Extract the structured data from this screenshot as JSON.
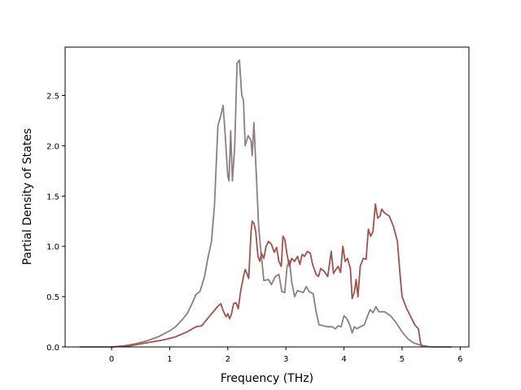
{
  "chart_data": {
    "type": "line",
    "title": "",
    "xlabel": "Frequency (THz)",
    "ylabel": "Partial Density of States",
    "xlim": [
      -0.8,
      6.15
    ],
    "ylim": [
      0,
      2.98
    ],
    "xticks": [
      0,
      1,
      2,
      3,
      4,
      5,
      6
    ],
    "yticks": [
      0.0,
      0.5,
      1.0,
      1.5,
      2.0,
      2.5
    ],
    "ytick_labels": [
      "0.0",
      "0.5",
      "1.0",
      "1.5",
      "2.0",
      "2.5"
    ],
    "grid": false,
    "legend": "none",
    "series": [
      {
        "color": "#8c7e85",
        "points": [
          [
            -0.55,
            0
          ],
          [
            0,
            0
          ],
          [
            0.2,
            0.01
          ],
          [
            0.4,
            0.03
          ],
          [
            0.6,
            0.06
          ],
          [
            0.8,
            0.1
          ],
          [
            1.0,
            0.16
          ],
          [
            1.1,
            0.2
          ],
          [
            1.2,
            0.26
          ],
          [
            1.3,
            0.33
          ],
          [
            1.4,
            0.45
          ],
          [
            1.45,
            0.52
          ],
          [
            1.52,
            0.55
          ],
          [
            1.6,
            0.7
          ],
          [
            1.65,
            0.86
          ],
          [
            1.72,
            1.05
          ],
          [
            1.77,
            1.4
          ],
          [
            1.83,
            2.2
          ],
          [
            1.88,
            2.3
          ],
          [
            1.92,
            2.4
          ],
          [
            1.95,
            2.15
          ],
          [
            2.0,
            1.7
          ],
          [
            2.02,
            1.65
          ],
          [
            2.05,
            2.15
          ],
          [
            2.08,
            1.65
          ],
          [
            2.12,
            2.0
          ],
          [
            2.16,
            2.82
          ],
          [
            2.2,
            2.85
          ],
          [
            2.24,
            2.5
          ],
          [
            2.27,
            2.45
          ],
          [
            2.3,
            2.0
          ],
          [
            2.35,
            2.1
          ],
          [
            2.4,
            2.05
          ],
          [
            2.42,
            1.9
          ],
          [
            2.45,
            2.23
          ],
          [
            2.5,
            1.6
          ],
          [
            2.53,
            1.2
          ],
          [
            2.57,
            0.95
          ],
          [
            2.62,
            0.66
          ],
          [
            2.7,
            0.67
          ],
          [
            2.75,
            0.62
          ],
          [
            2.82,
            0.7
          ],
          [
            2.88,
            0.72
          ],
          [
            2.93,
            0.55
          ],
          [
            2.98,
            0.54
          ],
          [
            3.02,
            0.8
          ],
          [
            3.06,
            0.86
          ],
          [
            3.1,
            0.65
          ],
          [
            3.15,
            0.5
          ],
          [
            3.2,
            0.56
          ],
          [
            3.25,
            0.55
          ],
          [
            3.3,
            0.54
          ],
          [
            3.35,
            0.6
          ],
          [
            3.4,
            0.55
          ],
          [
            3.47,
            0.53
          ],
          [
            3.52,
            0.35
          ],
          [
            3.57,
            0.22
          ],
          [
            3.65,
            0.21
          ],
          [
            3.72,
            0.2
          ],
          [
            3.8,
            0.2
          ],
          [
            3.85,
            0.18
          ],
          [
            3.9,
            0.21
          ],
          [
            3.95,
            0.2
          ],
          [
            4.0,
            0.31
          ],
          [
            4.05,
            0.28
          ],
          [
            4.1,
            0.22
          ],
          [
            4.14,
            0.14
          ],
          [
            4.18,
            0.2
          ],
          [
            4.22,
            0.18
          ],
          [
            4.28,
            0.2
          ],
          [
            4.35,
            0.22
          ],
          [
            4.4,
            0.3
          ],
          [
            4.45,
            0.37
          ],
          [
            4.5,
            0.34
          ],
          [
            4.55,
            0.4
          ],
          [
            4.6,
            0.35
          ],
          [
            4.7,
            0.35
          ],
          [
            4.8,
            0.31
          ],
          [
            4.9,
            0.24
          ],
          [
            5.0,
            0.15
          ],
          [
            5.1,
            0.08
          ],
          [
            5.2,
            0.04
          ],
          [
            5.3,
            0.02
          ],
          [
            5.4,
            0.01
          ],
          [
            5.5,
            0
          ],
          [
            5.85,
            0
          ]
        ]
      },
      {
        "color": "#a0524d",
        "points": [
          [
            0,
            0
          ],
          [
            0.3,
            0.01
          ],
          [
            0.6,
            0.04
          ],
          [
            0.9,
            0.07
          ],
          [
            1.1,
            0.1
          ],
          [
            1.3,
            0.15
          ],
          [
            1.45,
            0.2
          ],
          [
            1.55,
            0.21
          ],
          [
            1.65,
            0.28
          ],
          [
            1.75,
            0.35
          ],
          [
            1.82,
            0.4
          ],
          [
            1.88,
            0.43
          ],
          [
            1.92,
            0.36
          ],
          [
            1.97,
            0.3
          ],
          [
            2.0,
            0.33
          ],
          [
            2.03,
            0.28
          ],
          [
            2.06,
            0.32
          ],
          [
            2.1,
            0.43
          ],
          [
            2.14,
            0.44
          ],
          [
            2.18,
            0.38
          ],
          [
            2.22,
            0.55
          ],
          [
            2.27,
            0.7
          ],
          [
            2.3,
            0.77
          ],
          [
            2.33,
            0.73
          ],
          [
            2.36,
            0.68
          ],
          [
            2.4,
            1.15
          ],
          [
            2.42,
            1.25
          ],
          [
            2.45,
            1.23
          ],
          [
            2.48,
            1.15
          ],
          [
            2.52,
            0.9
          ],
          [
            2.55,
            0.85
          ],
          [
            2.58,
            0.93
          ],
          [
            2.62,
            0.88
          ],
          [
            2.66,
            1.0
          ],
          [
            2.7,
            1.05
          ],
          [
            2.75,
            1.02
          ],
          [
            2.8,
            0.94
          ],
          [
            2.84,
            0.99
          ],
          [
            2.88,
            0.85
          ],
          [
            2.92,
            0.8
          ],
          [
            2.95,
            1.1
          ],
          [
            2.98,
            1.07
          ],
          [
            3.02,
            0.92
          ],
          [
            3.06,
            0.8
          ],
          [
            3.1,
            0.88
          ],
          [
            3.15,
            0.85
          ],
          [
            3.2,
            0.9
          ],
          [
            3.24,
            0.82
          ],
          [
            3.28,
            0.92
          ],
          [
            3.32,
            0.9
          ],
          [
            3.37,
            0.95
          ],
          [
            3.42,
            0.93
          ],
          [
            3.46,
            0.82
          ],
          [
            3.52,
            0.72
          ],
          [
            3.56,
            0.7
          ],
          [
            3.6,
            0.78
          ],
          [
            3.66,
            0.75
          ],
          [
            3.72,
            0.7
          ],
          [
            3.78,
            0.95
          ],
          [
            3.82,
            0.73
          ],
          [
            3.86,
            0.77
          ],
          [
            3.9,
            0.8
          ],
          [
            3.94,
            0.74
          ],
          [
            3.98,
            1.0
          ],
          [
            4.02,
            0.85
          ],
          [
            4.06,
            0.88
          ],
          [
            4.11,
            0.78
          ],
          [
            4.14,
            0.48
          ],
          [
            4.18,
            0.55
          ],
          [
            4.21,
            0.67
          ],
          [
            4.24,
            0.5
          ],
          [
            4.28,
            0.8
          ],
          [
            4.33,
            0.88
          ],
          [
            4.38,
            0.87
          ],
          [
            4.42,
            1.17
          ],
          [
            4.46,
            1.1
          ],
          [
            4.5,
            1.15
          ],
          [
            4.54,
            1.42
          ],
          [
            4.58,
            1.28
          ],
          [
            4.62,
            1.3
          ],
          [
            4.65,
            1.37
          ],
          [
            4.7,
            1.33
          ],
          [
            4.78,
            1.3
          ],
          [
            4.85,
            1.2
          ],
          [
            4.92,
            1.05
          ],
          [
            4.96,
            0.75
          ],
          [
            5.0,
            0.5
          ],
          [
            5.08,
            0.38
          ],
          [
            5.15,
            0.3
          ],
          [
            5.22,
            0.22
          ],
          [
            5.28,
            0.18
          ],
          [
            5.32,
            0.03
          ],
          [
            5.35,
            0
          ]
        ]
      }
    ]
  }
}
